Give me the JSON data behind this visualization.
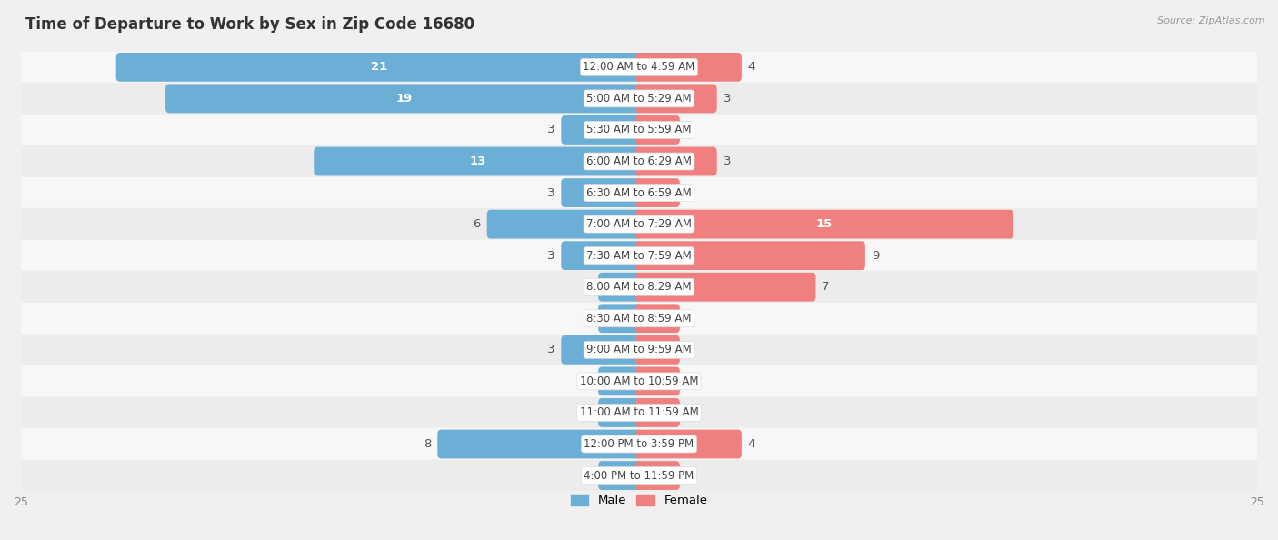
{
  "title": "Time of Departure to Work by Sex in Zip Code 16680",
  "source": "Source: ZipAtlas.com",
  "categories": [
    "12:00 AM to 4:59 AM",
    "5:00 AM to 5:29 AM",
    "5:30 AM to 5:59 AM",
    "6:00 AM to 6:29 AM",
    "6:30 AM to 6:59 AM",
    "7:00 AM to 7:29 AM",
    "7:30 AM to 7:59 AM",
    "8:00 AM to 8:29 AM",
    "8:30 AM to 8:59 AM",
    "9:00 AM to 9:59 AM",
    "10:00 AM to 10:59 AM",
    "11:00 AM to 11:59 AM",
    "12:00 PM to 3:59 PM",
    "4:00 PM to 11:59 PM"
  ],
  "male_values": [
    21,
    19,
    3,
    13,
    3,
    6,
    3,
    0,
    0,
    3,
    0,
    0,
    8,
    0
  ],
  "female_values": [
    4,
    3,
    0,
    3,
    0,
    15,
    9,
    7,
    0,
    0,
    0,
    0,
    4,
    0
  ],
  "male_color": "#6baed6",
  "female_color": "#f08080",
  "axis_max": 25,
  "bar_height": 0.62,
  "label_fontsize": 9.5,
  "cat_fontsize": 8.5,
  "title_fontsize": 12,
  "source_fontsize": 8,
  "row_colors": [
    "#f7f7f7",
    "#ececec"
  ],
  "bg_color": "#f0f0f0",
  "min_bar_stub": 1.5
}
